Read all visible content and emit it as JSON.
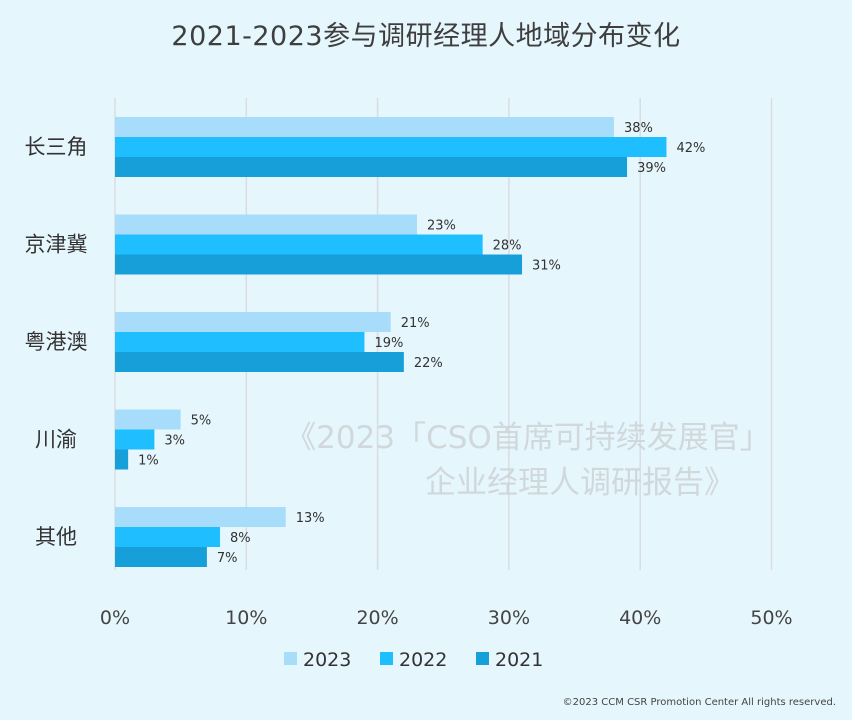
{
  "chart_data": {
    "type": "bar",
    "orientation": "horizontal",
    "title": "2021-2023参与调研经理人地域分布变化",
    "categories": [
      "长三角",
      "京津冀",
      "粤港澳",
      "川渝",
      "其他"
    ],
    "series": [
      {
        "name": "2023",
        "color": "#a8dcfb",
        "values": [
          38,
          23,
          21,
          5,
          13
        ]
      },
      {
        "name": "2022",
        "color": "#1ebeff",
        "values": [
          42,
          28,
          19,
          3,
          8
        ]
      },
      {
        "name": "2021",
        "color": "#169fd8",
        "values": [
          39,
          31,
          22,
          1,
          7
        ]
      }
    ],
    "xlim": [
      0,
      50
    ],
    "xticks": [
      "0%",
      "10%",
      "20%",
      "30%",
      "40%",
      "50%"
    ],
    "value_suffix": "%",
    "grid": "vertical",
    "legend": "bottom-center"
  },
  "watermark": {
    "line1": "《2023「CSO首席可持续发展官」",
    "line2": "企业经理人调研报告》"
  },
  "footer": {
    "copyright": "©2023 CCM CSR Promotion Center All rights  reserved."
  }
}
